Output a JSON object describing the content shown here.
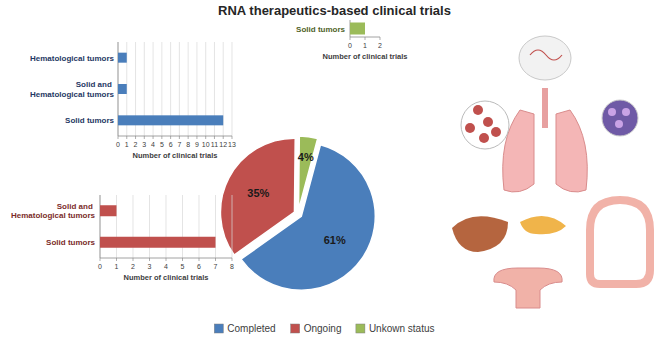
{
  "chart_data": [
    {
      "type": "pie",
      "title": "RNA therapeutics-based clinical trials",
      "categories": [
        "Completed",
        "Ongoing",
        "Unkown status"
      ],
      "values": [
        61,
        35,
        4
      ],
      "value_labels": [
        "61%",
        "35%",
        "4%"
      ],
      "colors": [
        "#4a7ebb",
        "#c0504d",
        "#9bbb59"
      ],
      "data_labels": true,
      "legend": "bottom"
    },
    {
      "type": "bar",
      "orientation": "horizontal",
      "categories": [
        "Hematological tumors",
        "Solid and Hematological tumors",
        "Solid tumors"
      ],
      "values": [
        1,
        1,
        12
      ],
      "color": "#4a7ebb",
      "xlabel": "Number of clinical trials",
      "xlim": [
        0,
        13
      ],
      "xticks": [
        0,
        1,
        2,
        3,
        4,
        5,
        6,
        7,
        8,
        9,
        10,
        11,
        12,
        13
      ],
      "grid": true
    },
    {
      "type": "bar",
      "orientation": "horizontal",
      "categories": [
        "Solid and Hematological tumors",
        "Solid tumors"
      ],
      "values": [
        1,
        7
      ],
      "color": "#c0504d",
      "xlabel": "Number of clinical trials",
      "xlim": [
        0,
        8
      ],
      "xticks": [
        0,
        1,
        2,
        3,
        4,
        5,
        6,
        7,
        8
      ],
      "grid": true
    },
    {
      "type": "bar",
      "orientation": "horizontal",
      "categories": [
        "Solid tumors"
      ],
      "values": [
        1
      ],
      "color": "#9bbb59",
      "xlabel": "Number of clinical trials",
      "xlim": [
        0,
        2
      ],
      "xticks": [
        0,
        1,
        2
      ],
      "grid": false
    }
  ]
}
